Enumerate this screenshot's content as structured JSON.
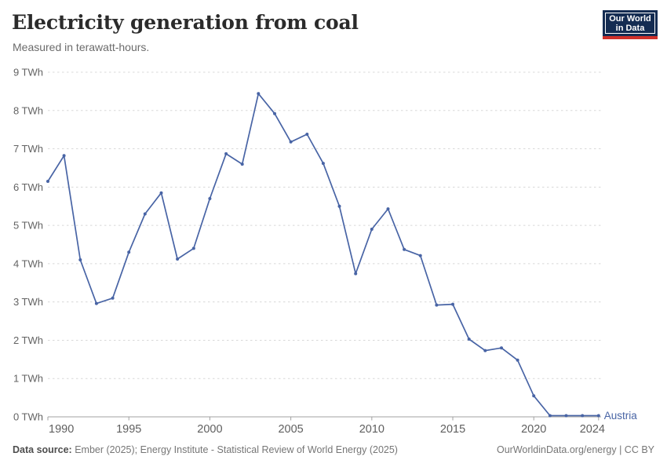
{
  "header": {
    "title": "Electricity generation from coal",
    "subtitle": "Measured in terawatt-hours."
  },
  "logo": {
    "line1": "Our World",
    "line2": "in Data",
    "bg_color": "#142c52",
    "accent_color": "#d0312a"
  },
  "chart_data": {
    "type": "line",
    "title": "Electricity generation from coal",
    "subtitle": "Measured in terawatt-hours.",
    "unit": "TWh",
    "grid": "horizontal-dashed",
    "legend_position": "end-of-line-label",
    "ylim": [
      0,
      9
    ],
    "y_ticks": [
      0,
      1,
      2,
      3,
      4,
      5,
      6,
      7,
      8,
      9
    ],
    "y_tick_labels": [
      "0 TWh",
      "1 TWh",
      "2 TWh",
      "3 TWh",
      "4 TWh",
      "5 TWh",
      "6 TWh",
      "7 TWh",
      "8 TWh",
      "9 TWh"
    ],
    "x_tick_years": [
      1990,
      1995,
      2000,
      2005,
      2010,
      2015,
      2020,
      2024
    ],
    "x_tick_labels": [
      "1990",
      "1995",
      "2000",
      "2005",
      "2010",
      "2015",
      "2020",
      "2024"
    ],
    "x": [
      1990,
      1991,
      1992,
      1993,
      1994,
      1995,
      1996,
      1997,
      1998,
      1999,
      2000,
      2001,
      2002,
      2003,
      2004,
      2005,
      2006,
      2007,
      2008,
      2009,
      2010,
      2011,
      2012,
      2013,
      2014,
      2015,
      2016,
      2017,
      2018,
      2019,
      2020,
      2021,
      2022,
      2023,
      2024
    ],
    "series": [
      {
        "name": "Austria",
        "color": "#4864a5",
        "values": [
          6.15,
          6.82,
          4.1,
          2.96,
          3.1,
          4.3,
          5.3,
          5.85,
          4.12,
          4.4,
          5.7,
          6.87,
          6.6,
          8.44,
          7.92,
          7.18,
          7.38,
          6.62,
          5.5,
          3.74,
          4.9,
          5.43,
          4.37,
          4.21,
          2.92,
          2.94,
          2.03,
          1.73,
          1.8,
          1.48,
          0.55,
          0.03,
          0.03,
          0.03,
          0.03
        ]
      }
    ]
  },
  "theme": {
    "gridline_color": "#d8d8d8",
    "axis_color": "#a1a1a1",
    "tick_text_color": "#636363",
    "series_color": "#4864a5"
  },
  "footer": {
    "source_label": "Data source:",
    "source_text": "Ember (2025); Energy Institute - Statistical Review of World Energy (2025)",
    "credit": "OurWorldinData.org/energy | CC BY"
  }
}
